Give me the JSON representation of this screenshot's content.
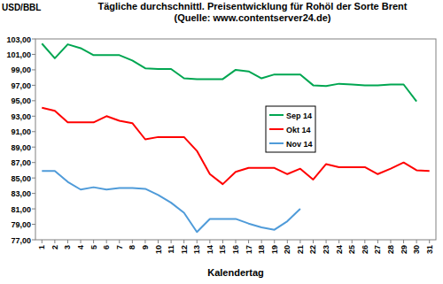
{
  "chart_data": {
    "type": "line",
    "title": "Tägliche durchschnittl. Preisentwicklung für Rohöl der Sorte Brent",
    "subtitle": "(Quelle: www.contentserver24.de)",
    "y_label": "USD/BBL",
    "x_label": "Kalendertag",
    "x": [
      1,
      2,
      3,
      4,
      5,
      6,
      7,
      8,
      9,
      10,
      11,
      12,
      13,
      14,
      15,
      16,
      17,
      18,
      19,
      20,
      21,
      22,
      23,
      24,
      25,
      26,
      27,
      28,
      29,
      30,
      31
    ],
    "xlim": [
      0.5,
      31.5
    ],
    "xticks": [
      1,
      2,
      3,
      4,
      5,
      6,
      7,
      8,
      9,
      10,
      11,
      12,
      13,
      14,
      15,
      16,
      17,
      18,
      19,
      20,
      21,
      22,
      23,
      24,
      25,
      26,
      27,
      28,
      29,
      30,
      31
    ],
    "ylim": [
      77,
      103
    ],
    "yticks": [
      {
        "value": 77,
        "label": "77,00"
      },
      {
        "value": 79,
        "label": "79,00"
      },
      {
        "value": 81,
        "label": "81,00"
      },
      {
        "value": 83,
        "label": "83,00"
      },
      {
        "value": 85,
        "label": "85,00"
      },
      {
        "value": 87,
        "label": "87,00"
      },
      {
        "value": 89,
        "label": "89,00"
      },
      {
        "value": 91,
        "label": "91,00"
      },
      {
        "value": 93,
        "label": "93,00"
      },
      {
        "value": 95,
        "label": "95,00"
      },
      {
        "value": 97,
        "label": "97,00"
      },
      {
        "value": 99,
        "label": "99,00"
      },
      {
        "value": 101,
        "label": "101,00"
      },
      {
        "value": 103,
        "label": "103,00"
      }
    ],
    "grid": false,
    "legend": "right",
    "series": [
      {
        "name": "Sep 14",
        "color": "#00a651",
        "values": [
          102.4,
          100.5,
          102.3,
          101.8,
          100.9,
          100.9,
          100.9,
          100.2,
          99.2,
          99.1,
          99.1,
          97.9,
          97.8,
          97.8,
          97.8,
          99.0,
          98.8,
          97.9,
          98.4,
          98.4,
          98.4,
          97.0,
          96.9,
          97.2,
          97.1,
          97.0,
          97.0,
          97.1,
          97.1,
          94.9,
          null
        ]
      },
      {
        "name": "Okt 14",
        "color": "#ff0000",
        "values": [
          94.1,
          93.7,
          92.2,
          92.2,
          92.2,
          93.0,
          92.4,
          92.1,
          90.0,
          90.3,
          90.3,
          90.3,
          88.5,
          85.5,
          84.2,
          85.8,
          86.3,
          86.3,
          86.3,
          85.5,
          86.2,
          84.8,
          86.8,
          86.4,
          86.4,
          86.4,
          85.5,
          86.2,
          87.0,
          86.0,
          85.9
        ]
      },
      {
        "name": "Nov 14",
        "color": "#4f9bd9",
        "values": [
          85.9,
          85.9,
          84.5,
          83.5,
          83.8,
          83.5,
          83.7,
          83.7,
          83.6,
          82.8,
          81.8,
          80.5,
          78.0,
          79.7,
          79.7,
          79.7,
          79.1,
          78.6,
          78.3,
          79.4,
          81.0,
          null,
          null,
          null,
          null,
          null,
          null,
          null,
          null,
          null,
          null
        ]
      }
    ]
  }
}
